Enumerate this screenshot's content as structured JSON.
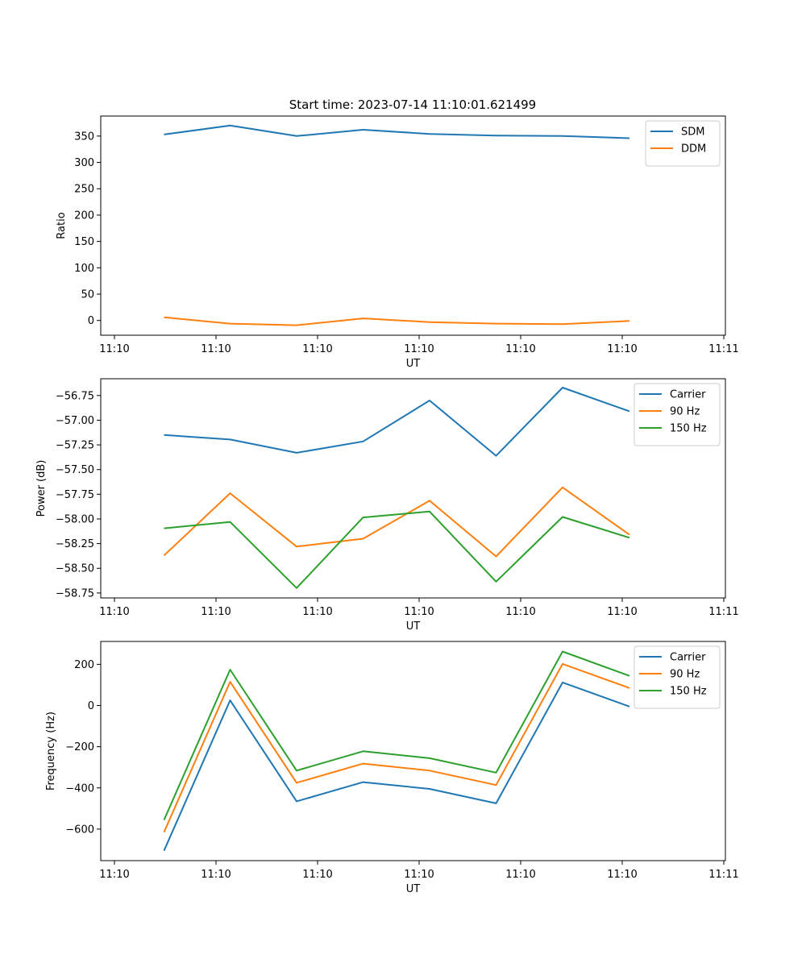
{
  "title": "Start time: 2023-07-14 11:10:01.621499",
  "chart_data": [
    {
      "type": "line",
      "title": "Start time: 2023-07-14 11:10:01.621499",
      "xlabel": "UT",
      "ylabel": "Ratio",
      "x_tick_labels": [
        "11:10",
        "11:10",
        "11:10",
        "11:10",
        "11:10",
        "11:10",
        "11:11"
      ],
      "ylim": [
        -28,
        388
      ],
      "yticks": [
        0,
        50,
        100,
        150,
        200,
        250,
        300,
        350
      ],
      "legend_position": "upper right",
      "series": [
        {
          "name": "SDM",
          "color": "#1f77b4",
          "values": [
            353,
            370,
            350,
            362,
            354,
            351,
            350,
            346
          ]
        },
        {
          "name": "DDM",
          "color": "#ff7f0e",
          "values": [
            6,
            -6,
            -9,
            4,
            -3,
            -6,
            -7,
            -1
          ]
        }
      ]
    },
    {
      "type": "line",
      "title": "",
      "xlabel": "UT",
      "ylabel": "Power (dB)",
      "x_tick_labels": [
        "11:10",
        "11:10",
        "11:10",
        "11:10",
        "11:10",
        "11:10",
        "11:11"
      ],
      "ylim": [
        -58.8,
        -56.58
      ],
      "yticks": [
        -58.75,
        -58.5,
        -58.25,
        -58.0,
        -57.75,
        -57.5,
        -57.25,
        -57.0,
        -56.75
      ],
      "legend_position": "upper right",
      "series": [
        {
          "name": "Carrier",
          "color": "#1f77b4",
          "values": [
            -57.15,
            -57.195,
            -57.33,
            -57.215,
            -56.8,
            -57.36,
            -56.67,
            -56.91
          ]
        },
        {
          "name": "90 Hz",
          "color": "#ff7f0e",
          "values": [
            -58.37,
            -57.74,
            -58.28,
            -58.2,
            -57.815,
            -58.38,
            -57.68,
            -58.16
          ]
        },
        {
          "name": "150 Hz",
          "color": "#2ca02c",
          "values": [
            -58.095,
            -58.03,
            -58.7,
            -57.985,
            -57.925,
            -58.635,
            -57.98,
            -58.19
          ]
        }
      ]
    },
    {
      "type": "line",
      "title": "",
      "xlabel": "UT",
      "ylabel": "Frequency (Hz)",
      "x_tick_labels": [
        "11:10",
        "11:10",
        "11:10",
        "11:10",
        "11:10",
        "11:10",
        "11:11"
      ],
      "ylim": [
        -753,
        311
      ],
      "yticks": [
        -600,
        -400,
        -200,
        0,
        200
      ],
      "legend_position": "upper right",
      "series": [
        {
          "name": "Carrier",
          "color": "#1f77b4",
          "values": [
            -705,
            25,
            -465,
            -372,
            -405,
            -475,
            112,
            -5
          ]
        },
        {
          "name": "90 Hz",
          "color": "#ff7f0e",
          "values": [
            -615,
            115,
            -375,
            -282,
            -316,
            -386,
            202,
            85
          ]
        },
        {
          "name": "150 Hz",
          "color": "#2ca02c",
          "values": [
            -556,
            174,
            -316,
            -222,
            -256,
            -326,
            262,
            144
          ]
        }
      ]
    }
  ]
}
